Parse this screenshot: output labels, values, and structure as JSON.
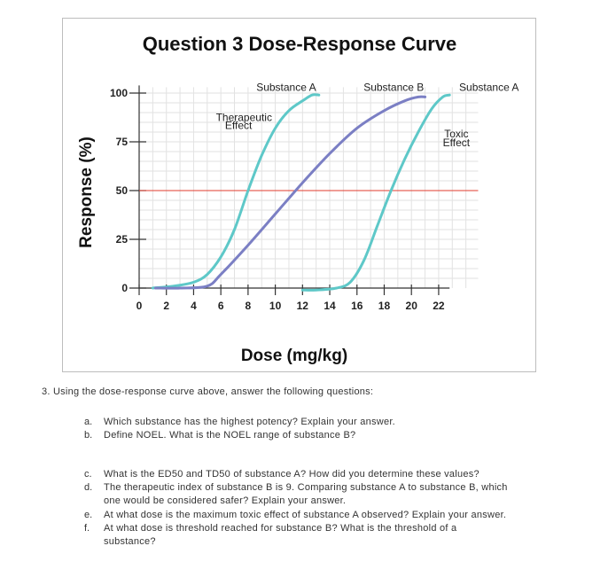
{
  "chart_data": {
    "type": "line",
    "title": "Question 3 Dose-Response Curve",
    "xlabel": "Dose (mg/kg)",
    "ylabel": "Response (%)",
    "xlim": [
      0,
      25
    ],
    "ylim": [
      0,
      100
    ],
    "x_ticks": [
      "0",
      "2",
      "4",
      "6",
      "8",
      "10",
      "12",
      "14",
      "16",
      "18",
      "20",
      "22"
    ],
    "y_ticks": [
      "0",
      "25",
      "50",
      "75",
      "100"
    ],
    "grid": true,
    "series": [
      {
        "name": "Substance A",
        "color": "#5ec8c8",
        "points": [
          [
            1.0,
            0
          ],
          [
            2.5,
            1
          ],
          [
            4.0,
            3
          ],
          [
            5.0,
            7
          ],
          [
            6.0,
            16
          ],
          [
            7.0,
            30
          ],
          [
            8.0,
            50
          ],
          [
            9.0,
            68
          ],
          [
            10.0,
            82
          ],
          [
            11.0,
            91
          ],
          [
            12.0,
            96
          ],
          [
            12.7,
            99
          ],
          [
            13.2,
            99
          ]
        ]
      },
      {
        "name": "Substance B",
        "color": "#7b7fc4",
        "points": [
          [
            1.2,
            0
          ],
          [
            3.0,
            0
          ],
          [
            5.0,
            1
          ],
          [
            6.0,
            7
          ],
          [
            8.0,
            22
          ],
          [
            10.0,
            38
          ],
          [
            12.0,
            54
          ],
          [
            14.0,
            69
          ],
          [
            16.0,
            82
          ],
          [
            18.0,
            91
          ],
          [
            19.5,
            96
          ],
          [
            20.5,
            98
          ],
          [
            21.0,
            98
          ]
        ]
      },
      {
        "name": "Substance A",
        "color": "#5ec8c8",
        "points": [
          [
            12.0,
            -1
          ],
          [
            13.0,
            -1
          ],
          [
            14.5,
            0
          ],
          [
            15.5,
            3
          ],
          [
            16.5,
            14
          ],
          [
            17.5,
            32
          ],
          [
            18.5,
            50
          ],
          [
            19.5,
            66
          ],
          [
            20.5,
            80
          ],
          [
            21.5,
            92
          ],
          [
            22.3,
            98
          ],
          [
            22.8,
            99
          ]
        ]
      }
    ],
    "reference_line": {
      "y": 50,
      "color": "#e23b2e"
    },
    "annotations": [
      {
        "text": "Substance A",
        "x": 10.8,
        "y": 103
      },
      {
        "text": "Substance B",
        "x": 18.7,
        "y": 103
      },
      {
        "text": "Substance A",
        "x": 25.7,
        "y": 103
      },
      {
        "text": "Therapeutic",
        "x": 7.7,
        "y": 87.5
      },
      {
        "text": "Effect",
        "x": 7.3,
        "y": 83.5
      },
      {
        "text": "Toxic",
        "x": 23.3,
        "y": 79
      },
      {
        "text": "Effect",
        "x": 23.3,
        "y": 74.5
      }
    ]
  },
  "questions": {
    "intro": "3.   Using the dose-response curve above, answer the following questions:",
    "items": [
      {
        "letter": "a.",
        "lines": [
          "Which substance has the highest potency? Explain your answer."
        ]
      },
      {
        "letter": "b.",
        "lines": [
          "Define NOEL. What is the NOEL range of substance B?"
        ]
      },
      {
        "letter": "c.",
        "lines": [
          "What is the ED50 and TD50 of substance A? How did you determine these values?"
        ]
      },
      {
        "letter": "d.",
        "lines": [
          "The therapeutic index of substance B is 9. Comparing substance A to substance B, which",
          "one would be considered safer? Explain your answer."
        ]
      },
      {
        "letter": "e.",
        "lines": [
          "At what dose is the maximum toxic effect of substance A observed? Explain your answer."
        ]
      },
      {
        "letter": "f.",
        "lines": [
          "At what dose is threshold reached for substance B? What is the threshold of a",
          "substance?"
        ]
      }
    ]
  }
}
